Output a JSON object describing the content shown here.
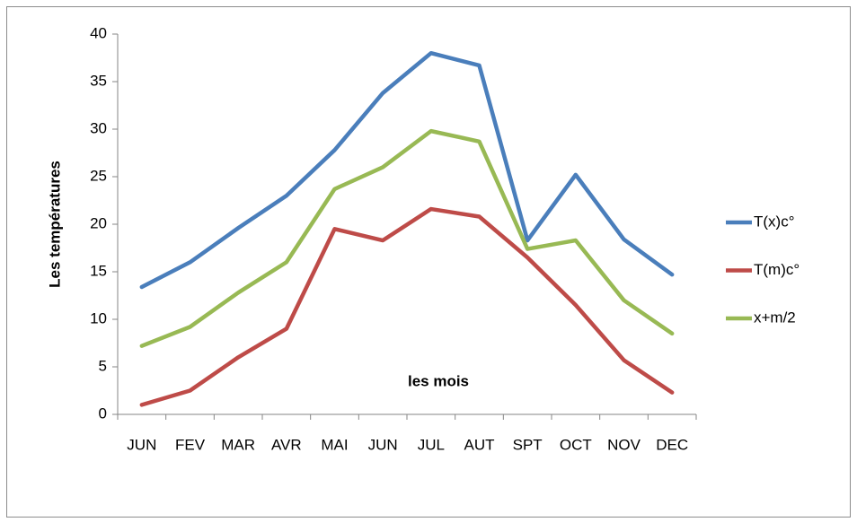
{
  "chart_data": {
    "type": "line",
    "categories": [
      "JUN",
      "FEV",
      "MAR",
      "AVR",
      "MAI",
      "JUN",
      "JUL",
      "AUT",
      "SPT",
      "OCT",
      "NOV",
      "DEC"
    ],
    "series": [
      {
        "name": "T(x)c°",
        "color": "#4a7ebb",
        "values": [
          13.4,
          16,
          19.6,
          23,
          27.8,
          33.8,
          38,
          36.7,
          18.3,
          25.2,
          18.4,
          14.7
        ]
      },
      {
        "name": "T(m)c°",
        "color": "#be4b48",
        "values": [
          1,
          2.5,
          6,
          9,
          19.5,
          18.3,
          21.6,
          20.8,
          16.5,
          11.5,
          5.7,
          2.3
        ]
      },
      {
        "name": "x+m/2",
        "color": "#98b954",
        "values": [
          7.2,
          9.2,
          12.8,
          16,
          23.7,
          26,
          29.8,
          28.7,
          17.4,
          18.3,
          12,
          8.5
        ]
      }
    ],
    "xlabel": "les mois",
    "ylabel": "Les températures",
    "ylim": [
      0,
      40
    ],
    "yticks": [
      0,
      5,
      10,
      15,
      20,
      25,
      30,
      35,
      40
    ],
    "grid": false,
    "legend": "right"
  }
}
